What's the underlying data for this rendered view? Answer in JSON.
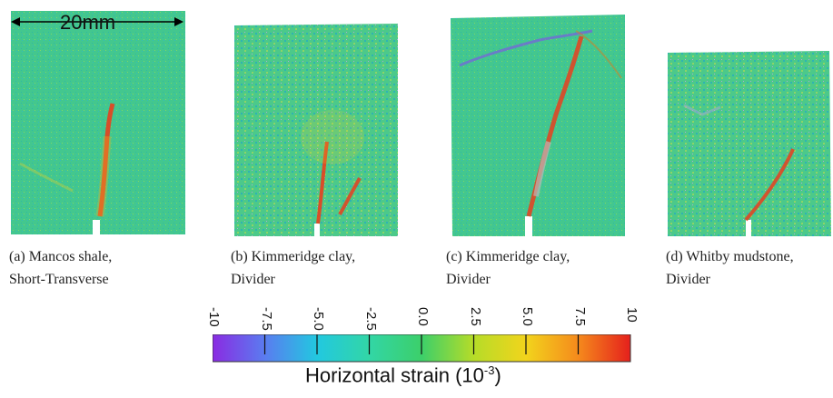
{
  "scale_bar": {
    "label": "20mm"
  },
  "panels": [
    {
      "caption_line1": "(a) Mancos shale,",
      "caption_line2": "Short-Transverse"
    },
    {
      "caption_line1": "(b) Kimmeridge clay,",
      "caption_line2": "Divider"
    },
    {
      "caption_line1": "(c) Kimmeridge clay,",
      "caption_line2": "Divider"
    },
    {
      "caption_line1": "(d) Whitby mudstone,",
      "caption_line2": "Divider"
    }
  ],
  "colorbar": {
    "title_prefix": "Horizontal strain (10",
    "title_exponent": "-3",
    "title_suffix": ")",
    "ticks": [
      "-10",
      "-7.5",
      "-5.0",
      "-2.5",
      "0.0",
      "2.5",
      "5.0",
      "7.5",
      "10"
    ],
    "range": [
      -10,
      10
    ],
    "colors": [
      "#8a2be2",
      "#5a7cf0",
      "#22c8e0",
      "#32d6a6",
      "#3ccf6a",
      "#b6dc28",
      "#f2d41c",
      "#f58a1c",
      "#e5201c"
    ]
  }
}
